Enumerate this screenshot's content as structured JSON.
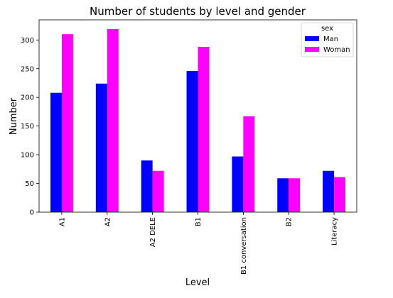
{
  "chart_data": {
    "type": "bar",
    "title": "Number of students by level and gender",
    "xlabel": "Level",
    "ylabel": "Number",
    "categories": [
      "A1",
      "A2",
      "A2 DELE",
      "B1",
      "B1 conversation",
      "B2",
      "Literacy"
    ],
    "series": [
      {
        "name": "Man",
        "color": "#0000ff",
        "values": [
          208,
          224,
          90,
          246,
          97,
          59,
          72
        ]
      },
      {
        "name": "Woman",
        "color": "#ff00ff",
        "values": [
          310,
          319,
          72,
          288,
          167,
          59,
          61
        ]
      }
    ],
    "ylim": [
      0,
      335
    ],
    "yticks": [
      0,
      50,
      100,
      150,
      200,
      250,
      300
    ],
    "grid": false,
    "legend": {
      "title": "sex",
      "placement": "top-right"
    }
  }
}
